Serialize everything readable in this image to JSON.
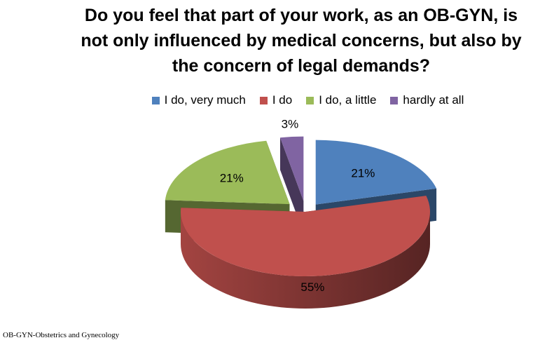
{
  "chart_data": {
    "type": "pie",
    "title_lines": [
      "Do you feel that part of your work,  as an OB-GYN, is",
      "not only influenced by medical concerns, but also by",
      "the concern of legal demands?"
    ],
    "categories": [
      "I do, very much",
      "I do",
      "I do, a little",
      "hardly at all"
    ],
    "values": [
      21,
      55,
      21,
      3
    ],
    "data_labels": [
      "21%",
      "55%",
      "21%",
      "3%"
    ],
    "colors": [
      "#4f81bd",
      "#c0504d",
      "#9bbb59",
      "#8064a2"
    ],
    "legend_position": "top",
    "style": "3d-exploded"
  },
  "footnote": "OB-GYN-Obstetrics and Gynecology"
}
